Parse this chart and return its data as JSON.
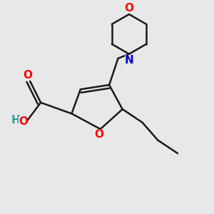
{
  "bg_color": "#e8e8e8",
  "bond_color": "#1a1a1a",
  "bond_width": 1.8,
  "atom_colors": {
    "O": "#ff0000",
    "N": "#0000cc",
    "H": "#2f9e9e",
    "C": "#1a1a1a"
  },
  "font_size": 11,
  "fig_size": [
    3.0,
    3.0
  ],
  "dpi": 100
}
